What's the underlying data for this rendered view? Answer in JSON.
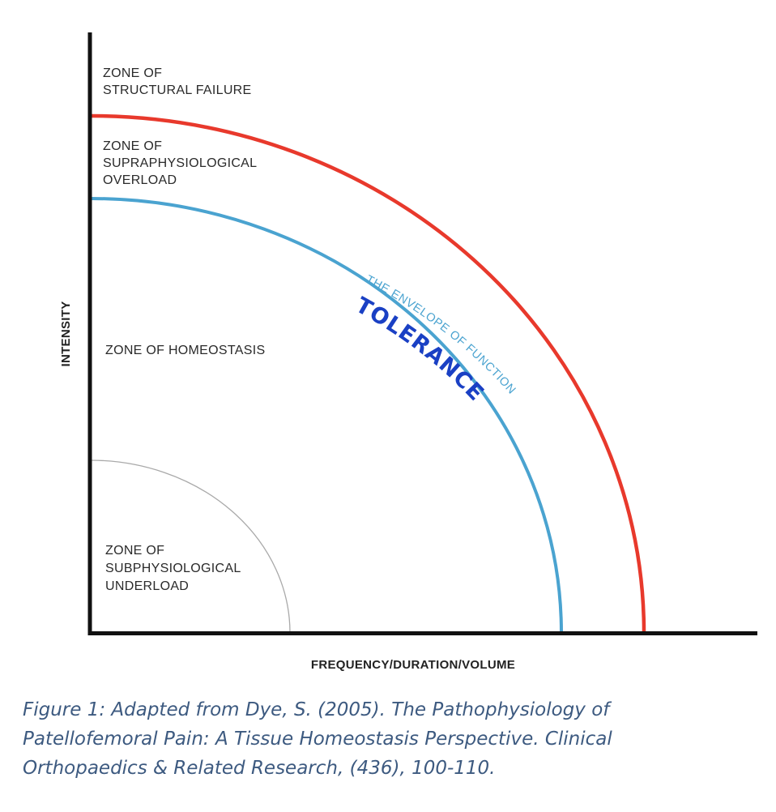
{
  "colors": {
    "structural_failure_curve": "#e8392c",
    "envelope_curve": "#4aa3d0",
    "underload_curve": "#a9a9a9",
    "axis": "#111111",
    "tolerance_text": "#1a40c4",
    "caption_text": "#3d5a80"
  },
  "axes": {
    "y_label": "INTENSITY",
    "x_label": "FREQUENCY/DURATION/VOLUME"
  },
  "zones": {
    "structural_failure": [
      "ZONE OF",
      "STRUCTURAL FAILURE"
    ],
    "supraphysiological_overload": [
      "ZONE OF",
      "SUPRAPHYSIOLOGICAL",
      "OVERLOAD"
    ],
    "homeostasis": [
      "ZONE OF HOMEOSTASIS"
    ],
    "subphysiological_underload": [
      "ZONE OF",
      "SUBPHYSIOLOGICAL",
      "UNDERLOAD"
    ]
  },
  "curve_labels": {
    "envelope": "THE ENVELOPE OF FUNCTION",
    "handwritten": "TOLERANCE"
  },
  "caption": {
    "lines": [
      "Figure 1: Adapted from Dye, S. (2005). The Pathophysiology of",
      "Patellofemoral Pain: A Tissue Homeostasis Perspective. Clinical",
      "Orthopaedics & Related Research, (436), 100-110."
    ]
  }
}
